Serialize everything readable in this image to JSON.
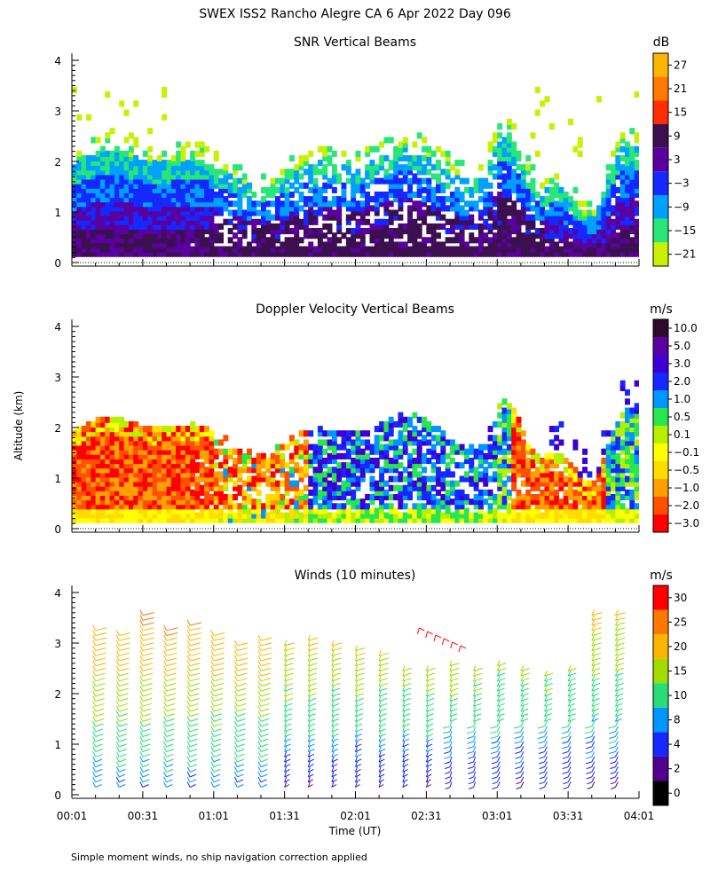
{
  "figure": {
    "title": "SWEX ISS2 Rancho Alegre CA    6 Apr 2022 Day 096",
    "ylabel": "Altitude (km)",
    "xlabel": "Time (UT)",
    "footnote": "Simple moment winds, no ship navigation correction applied"
  },
  "chart_data": [
    {
      "type": "heatmap",
      "title": "SNR Vertical Beams",
      "colorbar_unit": "dB",
      "colorbar_ticks": [
        "27",
        "21",
        "15",
        "9",
        "3",
        "−3",
        "−9",
        "−15",
        "−21"
      ],
      "colorbar_colors": [
        "#ffb400",
        "#ff7800",
        "#ff2d00",
        "#3c1050",
        "#5a00a0",
        "#1428ff",
        "#00a0ff",
        "#28e678",
        "#c8f000"
      ],
      "x_range": [
        "00:01",
        "04:01"
      ],
      "y_range": [
        0,
        4
      ],
      "yticks": [
        "0",
        "1",
        "2",
        "3",
        "4"
      ],
      "xticks": [
        "00:01",
        "00:31",
        "01:01",
        "01:31",
        "02:01",
        "02:31",
        "03:01",
        "03:31",
        "04:01"
      ],
      "description_levels": [
        {
          "altitude_km": [
            0.1,
            0.6
          ],
          "snr_db": 9
        },
        {
          "altitude_km": [
            0.6,
            1.3
          ],
          "snr_db": 3
        },
        {
          "altitude_km": [
            1.3,
            1.9
          ],
          "snr_db": -3
        },
        {
          "altitude_km": [
            1.9,
            3.5
          ],
          "snr_db": -21
        }
      ]
    },
    {
      "type": "heatmap",
      "title": "Doppler Velocity Vertical Beams",
      "colorbar_unit": "m/s",
      "colorbar_ticks": [
        "10.0",
        "5.0",
        "3.0",
        "2.0",
        "1.0",
        "0.5",
        "0.1",
        "−0.1",
        "−0.5",
        "−1.0",
        "−2.0",
        "−3.0"
      ],
      "colorbar_colors": [
        "#2d0a28",
        "#5a00a0",
        "#3c00d2",
        "#1428ff",
        "#0096ff",
        "#28e650",
        "#b4f000",
        "#ffff00",
        "#ffdc00",
        "#ffa000",
        "#ff5000",
        "#ff0000"
      ],
      "x_range": [
        "00:01",
        "04:01"
      ],
      "y_range": [
        0,
        4
      ],
      "yticks": [
        "0",
        "1",
        "2",
        "3",
        "4"
      ],
      "xticks": [
        "00:01",
        "00:31",
        "01:01",
        "01:31",
        "02:01",
        "02:31",
        "03:01",
        "03:31",
        "04:01"
      ]
    },
    {
      "type": "scatter",
      "title": "Winds (10 minutes)",
      "colorbar_unit": "m/s",
      "colorbar_ticks": [
        "30",
        "25",
        "20",
        "15",
        "10",
        "8",
        "4",
        "2",
        "0"
      ],
      "colorbar_colors": [
        "#ff0000",
        "#ff7800",
        "#ffb400",
        "#a0dc00",
        "#28dc78",
        "#0096ff",
        "#1428ff",
        "#50008c",
        "#000000"
      ],
      "x_range": [
        "00:01",
        "04:01"
      ],
      "y_range": [
        0,
        4
      ],
      "yticks": [
        "0",
        "1",
        "2",
        "3",
        "4"
      ],
      "xticks": [
        "00:01",
        "00:31",
        "01:01",
        "01:31",
        "02:01",
        "02:31",
        "03:01",
        "03:31",
        "04:01"
      ],
      "profile_times_min": [
        10,
        20,
        30,
        40,
        50,
        60,
        70,
        80,
        90,
        100,
        110,
        120,
        130,
        140,
        150,
        160,
        170,
        180,
        190,
        200,
        210,
        220,
        230
      ],
      "profile_tops_km": [
        3.3,
        3.2,
        3.6,
        3.3,
        3.4,
        3.2,
        3.0,
        3.1,
        3.0,
        3.1,
        3.0,
        2.9,
        2.8,
        2.5,
        2.5,
        2.6,
        2.5,
        2.6,
        2.5,
        2.4,
        2.5,
        3.6,
        3.6
      ]
    }
  ]
}
